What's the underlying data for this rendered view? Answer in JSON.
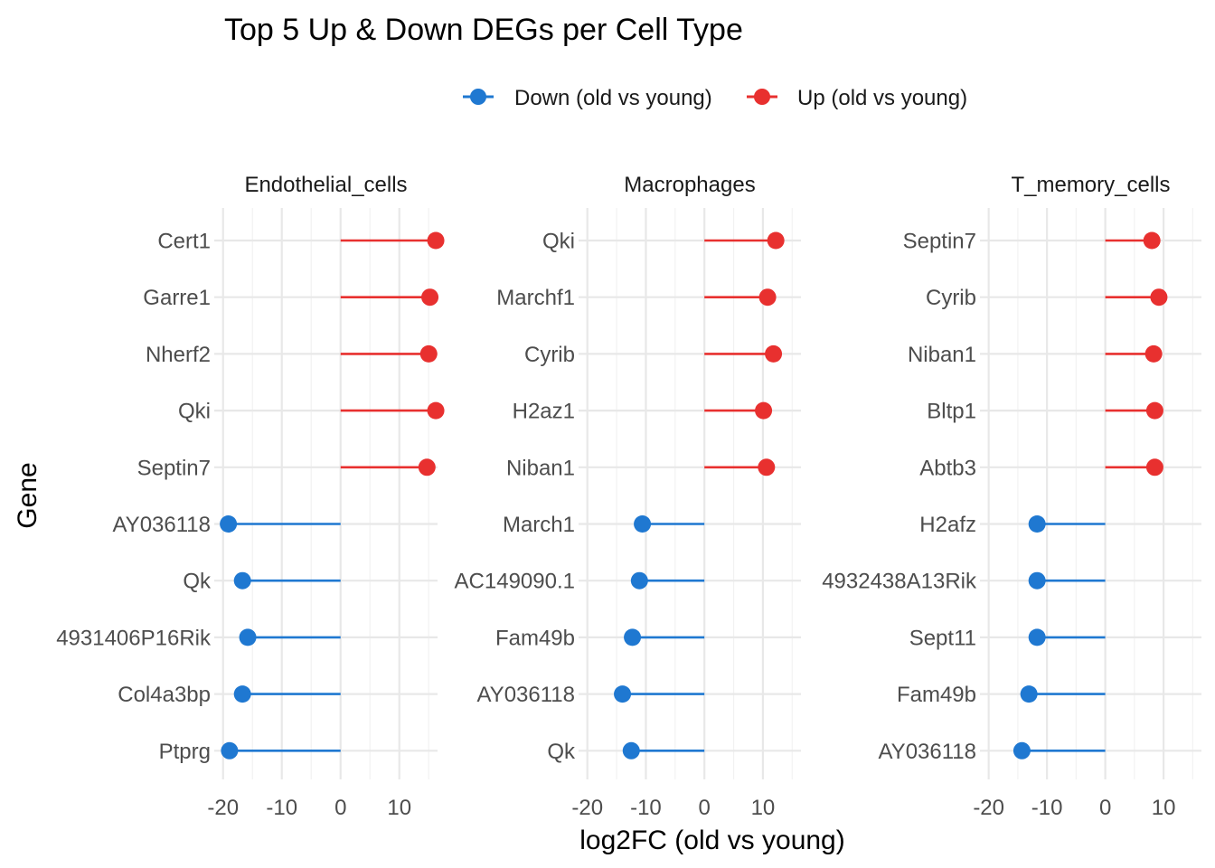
{
  "chart_data": {
    "type": "lollipop",
    "title": "Top 5 Up & Down DEGs per Cell Type",
    "xlabel": "log2FC (old vs young)",
    "ylabel": "Gene",
    "xlim": [
      -21.5,
      16.5
    ],
    "xticks": [
      -20,
      -10,
      0,
      10
    ],
    "tick_labels": [
      "-20",
      "-10",
      "0",
      "10"
    ],
    "grid": true,
    "legend": {
      "position": "top",
      "entries": [
        {
          "label": "Down (old vs young)",
          "color": "#1f78d1"
        },
        {
          "label": "Up (old vs young)",
          "color": "#e8302f"
        }
      ]
    },
    "series_colors": {
      "Down": "#1f78d1",
      "Up": "#e8302f"
    },
    "panels": [
      {
        "name": "Endothelial_cells",
        "genes": [
          {
            "gene": "Cert1",
            "log2fc": 16.2,
            "direction": "Up"
          },
          {
            "gene": "Garre1",
            "log2fc": 15.2,
            "direction": "Up"
          },
          {
            "gene": "Nherf2",
            "log2fc": 15.0,
            "direction": "Up"
          },
          {
            "gene": "Qki",
            "log2fc": 16.2,
            "direction": "Up"
          },
          {
            "gene": "Septin7",
            "log2fc": 14.7,
            "direction": "Up"
          },
          {
            "gene": "AY036118",
            "log2fc": -19.1,
            "direction": "Down"
          },
          {
            "gene": "Qk",
            "log2fc": -16.7,
            "direction": "Down"
          },
          {
            "gene": "4931406P16Rik",
            "log2fc": -15.8,
            "direction": "Down"
          },
          {
            "gene": "Col4a3bp",
            "log2fc": -16.7,
            "direction": "Down"
          },
          {
            "gene": "Ptprg",
            "log2fc": -18.9,
            "direction": "Down"
          }
        ]
      },
      {
        "name": "Macrophages",
        "genes": [
          {
            "gene": "Qki",
            "log2fc": 12.2,
            "direction": "Up"
          },
          {
            "gene": "Marchf1",
            "log2fc": 10.8,
            "direction": "Up"
          },
          {
            "gene": "Cyrib",
            "log2fc": 11.8,
            "direction": "Up"
          },
          {
            "gene": "H2az1",
            "log2fc": 10.1,
            "direction": "Up"
          },
          {
            "gene": "Niban1",
            "log2fc": 10.6,
            "direction": "Up"
          },
          {
            "gene": "March1",
            "log2fc": -10.6,
            "direction": "Down"
          },
          {
            "gene": "AC149090.1",
            "log2fc": -11.1,
            "direction": "Down"
          },
          {
            "gene": "Fam49b",
            "log2fc": -12.3,
            "direction": "Down"
          },
          {
            "gene": "AY036118",
            "log2fc": -14.0,
            "direction": "Down"
          },
          {
            "gene": "Qk",
            "log2fc": -12.5,
            "direction": "Down"
          }
        ]
      },
      {
        "name": "T_memory_cells",
        "genes": [
          {
            "gene": "Septin7",
            "log2fc": 8.0,
            "direction": "Up"
          },
          {
            "gene": "Cyrib",
            "log2fc": 9.2,
            "direction": "Up"
          },
          {
            "gene": "Niban1",
            "log2fc": 8.3,
            "direction": "Up"
          },
          {
            "gene": "Bltp1",
            "log2fc": 8.5,
            "direction": "Up"
          },
          {
            "gene": "Abtb3",
            "log2fc": 8.5,
            "direction": "Up"
          },
          {
            "gene": "H2afz",
            "log2fc": -11.7,
            "direction": "Down"
          },
          {
            "gene": "4932438A13Rik",
            "log2fc": -11.7,
            "direction": "Down"
          },
          {
            "gene": "Sept11",
            "log2fc": -11.7,
            "direction": "Down"
          },
          {
            "gene": "Fam49b",
            "log2fc": -13.1,
            "direction": "Down"
          },
          {
            "gene": "AY036118",
            "log2fc": -14.3,
            "direction": "Down"
          }
        ]
      }
    ]
  }
}
